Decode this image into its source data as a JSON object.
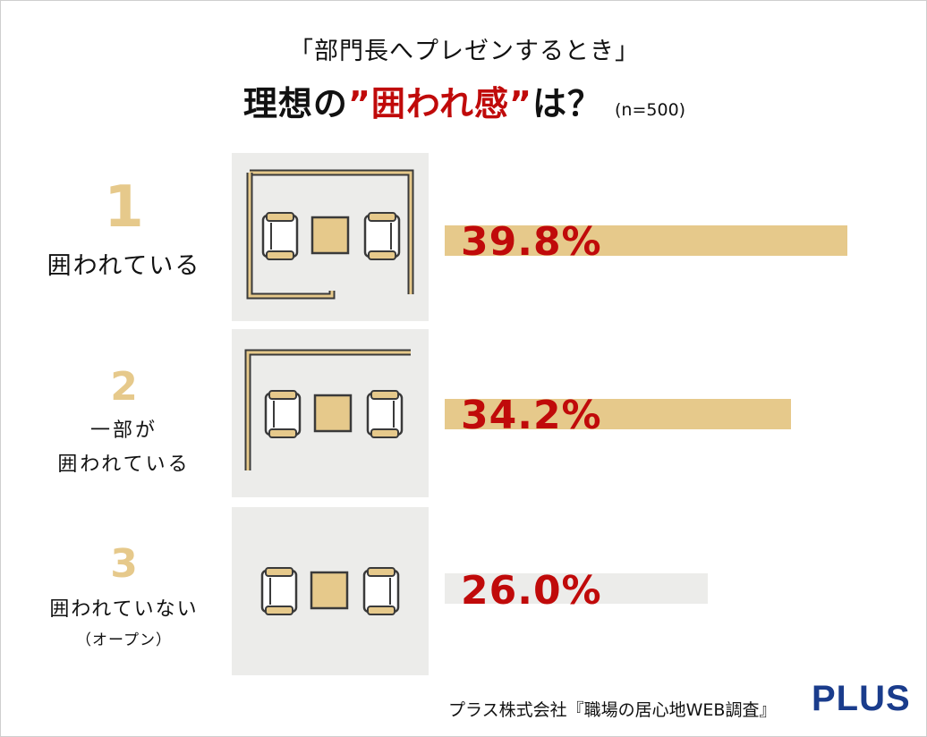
{
  "header": {
    "subtitle": "「部門長へプレゼンするとき」",
    "title_part1": "理想の",
    "title_accent": "”囲われ感”",
    "title_part2": "は？",
    "sample_size": "(n=500)"
  },
  "chart_data": {
    "type": "bar",
    "orientation": "horizontal",
    "ranks": [
      "1",
      "2",
      "3"
    ],
    "categories": [
      "囲われている",
      "一部が囲われている",
      "囲われていない（オープン）"
    ],
    "label_lines": [
      [
        "囲われている"
      ],
      [
        "一部が",
        "囲われている"
      ],
      [
        "囲われていない",
        "（オープン）"
      ]
    ],
    "values": [
      39.8,
      34.2,
      26.0
    ],
    "value_labels": [
      "39.8%",
      "34.2%",
      "26.0%"
    ],
    "unit": "%",
    "xlim": [
      0,
      39.8
    ],
    "colors": {
      "fill_ranked": "#e6c98b",
      "fill_last": "#ececea",
      "value_text": "#c00a0a"
    },
    "title": "理想の”囲われ感”は？",
    "subtitle": "「部門長へプレゼンするとき」"
  },
  "footer": {
    "source": "プラス株式会社『職場の居心地WEB調査』",
    "brand": "PLUS"
  }
}
